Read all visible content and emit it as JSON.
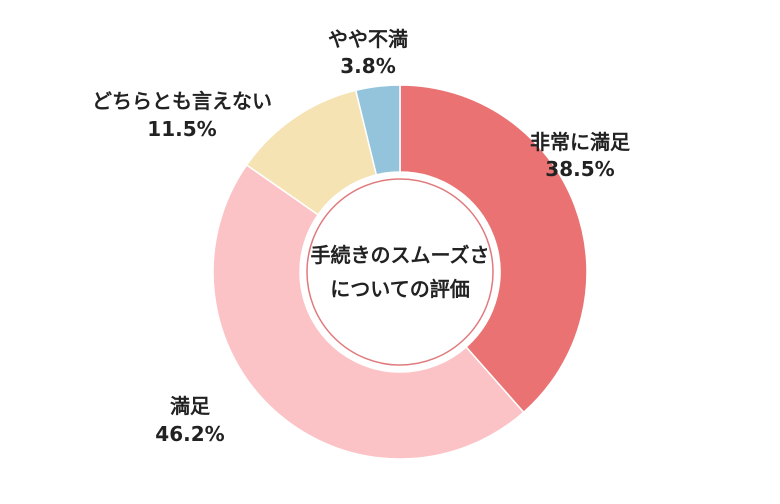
{
  "chart_data": {
    "type": "pie",
    "variant": "donut",
    "center_title": [
      "手続きのスムーズさ",
      "についての評価"
    ],
    "slices": [
      {
        "label": "非常に満足",
        "value": 38.5,
        "value_text": "38.5%",
        "color": "#ea7273"
      },
      {
        "label": "満足",
        "value": 46.2,
        "value_text": "46.2%",
        "color": "#fcc3c7"
      },
      {
        "label": "どちらとも言えない",
        "value": 11.5,
        "value_text": "11.5%",
        "color": "#f5e3b3"
      },
      {
        "label": "やや不満",
        "value": 3.8,
        "value_text": "3.8%",
        "color": "#93c4dc"
      }
    ],
    "start": "12 o'clock",
    "direction": "clockwise",
    "legend": "none"
  }
}
